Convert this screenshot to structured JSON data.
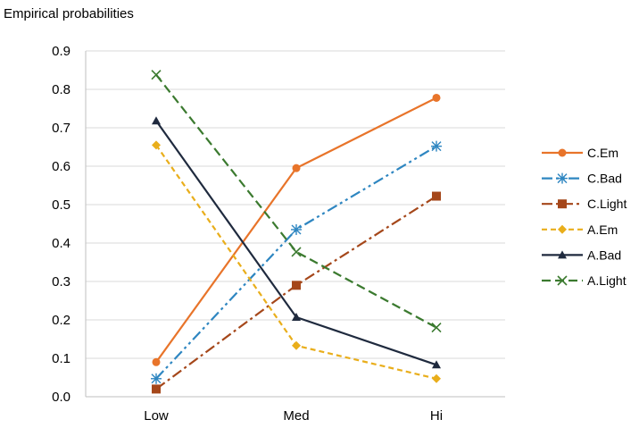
{
  "chart_data": {
    "type": "line",
    "title": "",
    "ylabel": "Empirical probabilities",
    "xlabel": "",
    "categories": [
      "Low",
      "Med",
      "Hi"
    ],
    "ylim": [
      0,
      0.9
    ],
    "yticks": [
      "0.0",
      "0.1",
      "0.2",
      "0.3",
      "0.4",
      "0.5",
      "0.6",
      "0.7",
      "0.8",
      "0.9"
    ],
    "grid": true,
    "legend_position": "right",
    "series": [
      {
        "name": "C.Em",
        "values": [
          0.09,
          0.595,
          0.778
        ],
        "color": "#E8742A",
        "dash": "solid",
        "marker": "circle"
      },
      {
        "name": "C.Bad",
        "values": [
          0.047,
          0.435,
          0.652
        ],
        "color": "#2E86C1",
        "dash": "dashdotdot",
        "marker": "asterisk"
      },
      {
        "name": "C.Light",
        "values": [
          0.02,
          0.29,
          0.522
        ],
        "color": "#A5471A",
        "dash": "dashdot",
        "marker": "square"
      },
      {
        "name": "A.Em",
        "values": [
          0.655,
          0.133,
          0.047
        ],
        "color": "#E9AE1B",
        "dash": "dash",
        "marker": "diamond"
      },
      {
        "name": "A.Bad",
        "values": [
          0.718,
          0.207,
          0.083
        ],
        "color": "#1F2A3E",
        "dash": "solid",
        "marker": "triangle"
      },
      {
        "name": "A.Light",
        "values": [
          0.838,
          0.377,
          0.18
        ],
        "color": "#3B7A2F",
        "dash": "longdash",
        "marker": "x"
      }
    ]
  }
}
